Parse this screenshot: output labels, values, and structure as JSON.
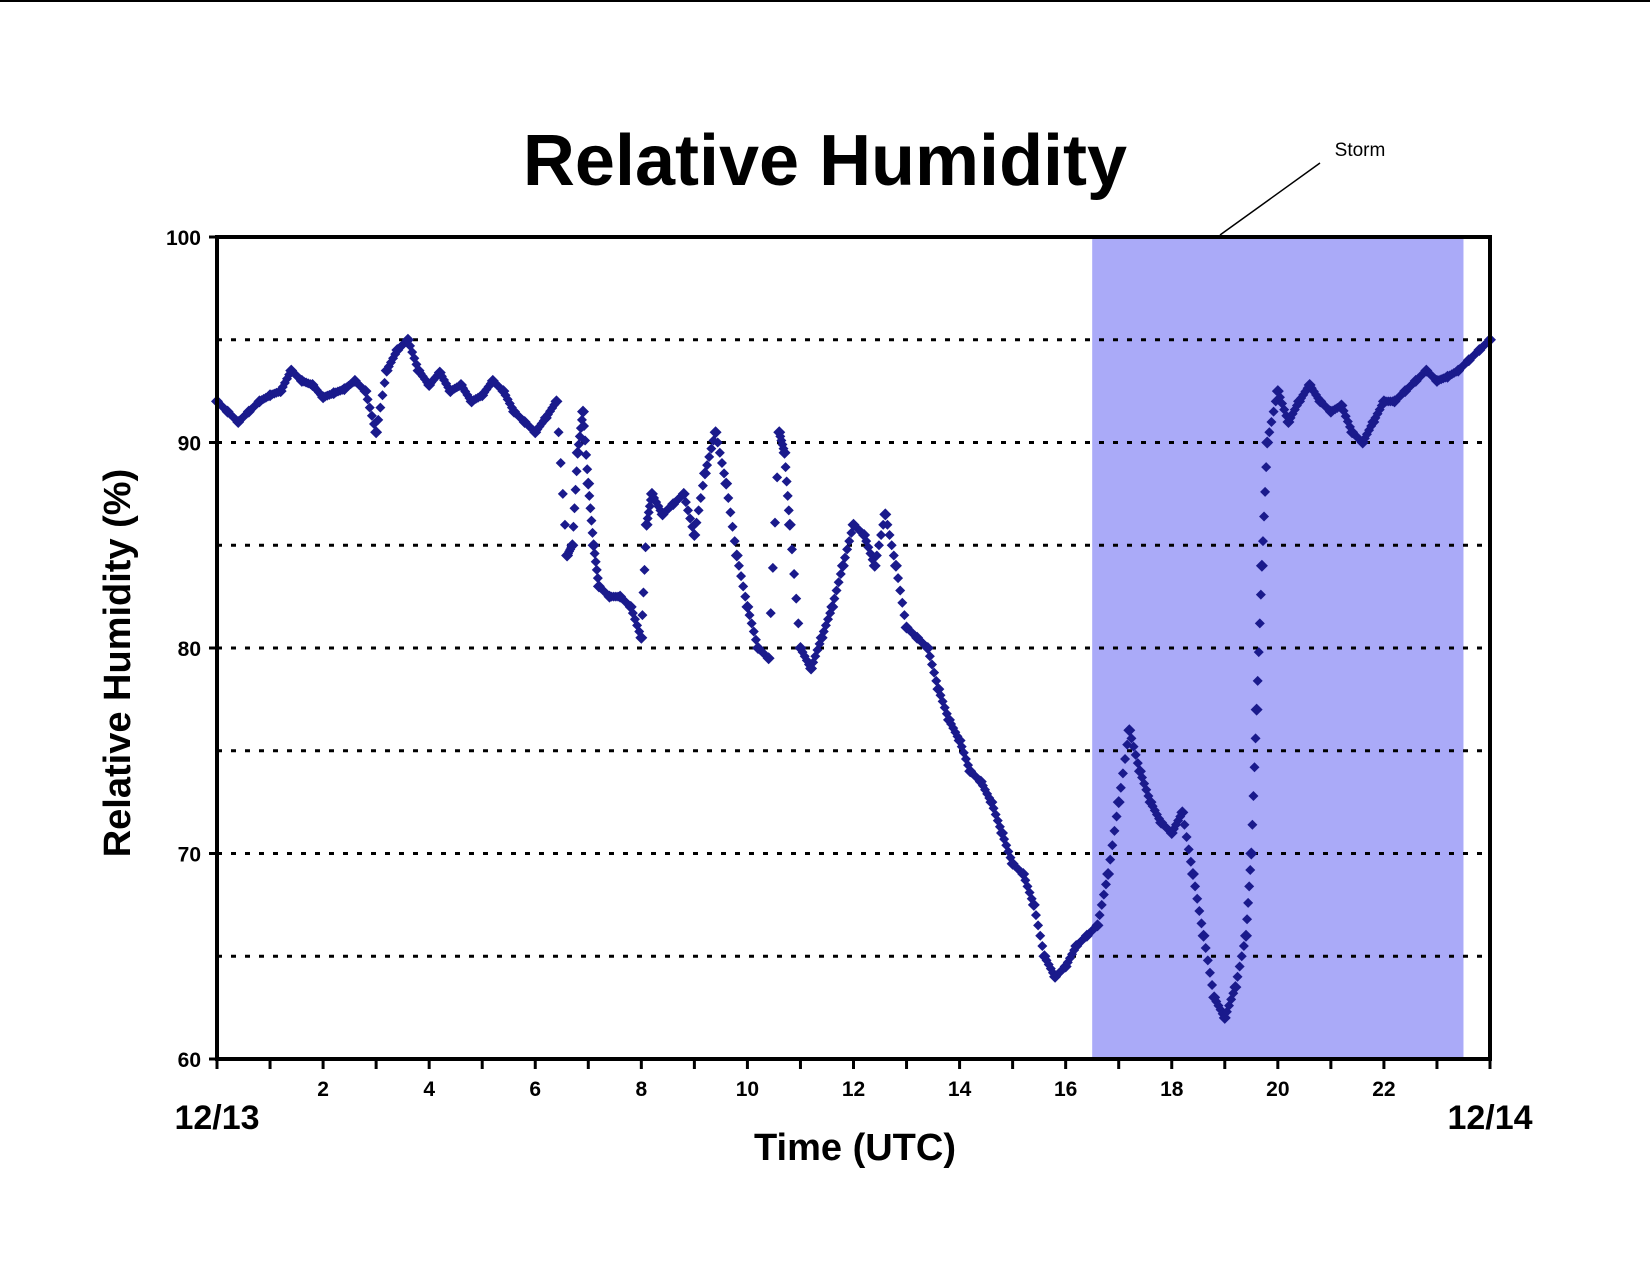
{
  "chart_data": {
    "type": "scatter",
    "title": "Relative Humidity",
    "xlabel": "Time (UTC)",
    "ylabel": "Relative Humidity (%)",
    "xlim": [
      0,
      24
    ],
    "ylim": [
      60,
      100
    ],
    "yticks": [
      60,
      70,
      80,
      90,
      100
    ],
    "y_gridlines": [
      65,
      70,
      75,
      80,
      85,
      90,
      95
    ],
    "x_tick_labels": [
      2,
      4,
      6,
      8,
      10,
      12,
      14,
      16,
      18,
      20,
      22
    ],
    "date_labels": [
      "12/13",
      "12/14"
    ],
    "marker_color": "#1a1a8c",
    "storm": {
      "label": "Storm",
      "x_start": 16.5,
      "x_end": 23.5,
      "color": "#aaaaf8"
    },
    "x": [
      0.0,
      0.2,
      0.4,
      0.6,
      0.8,
      1.0,
      1.2,
      1.4,
      1.6,
      1.8,
      2.0,
      2.2,
      2.4,
      2.6,
      2.8,
      3.0,
      3.2,
      3.4,
      3.6,
      3.8,
      4.0,
      4.2,
      4.4,
      4.6,
      4.8,
      5.0,
      5.2,
      5.4,
      5.6,
      5.8,
      6.0,
      6.2,
      6.4,
      6.6,
      6.7,
      6.8,
      6.9,
      7.0,
      7.1,
      7.2,
      7.4,
      7.6,
      7.8,
      8.0,
      8.1,
      8.2,
      8.4,
      8.6,
      8.8,
      9.0,
      9.2,
      9.4,
      9.6,
      9.8,
      10.0,
      10.2,
      10.4,
      10.6,
      10.7,
      10.8,
      11.0,
      11.2,
      11.4,
      11.6,
      11.8,
      12.0,
      12.2,
      12.4,
      12.6,
      12.8,
      13.0,
      13.2,
      13.4,
      13.6,
      13.8,
      14.0,
      14.2,
      14.4,
      14.6,
      14.8,
      15.0,
      15.2,
      15.4,
      15.6,
      15.8,
      16.0,
      16.2,
      16.4,
      16.6,
      16.8,
      17.0,
      17.2,
      17.4,
      17.6,
      17.8,
      18.0,
      18.2,
      18.4,
      18.6,
      18.8,
      19.0,
      19.2,
      19.4,
      19.5,
      19.6,
      19.7,
      19.8,
      20.0,
      20.2,
      20.4,
      20.6,
      20.8,
      21.0,
      21.2,
      21.4,
      21.6,
      21.8,
      22.0,
      22.2,
      22.4,
      22.6,
      22.8,
      23.0,
      23.2,
      23.4,
      23.6,
      23.8,
      24.0
    ],
    "y": [
      92,
      91.5,
      91,
      91.5,
      92,
      92.3,
      92.5,
      93.5,
      93,
      92.8,
      92.2,
      92.4,
      92.6,
      93,
      92.5,
      90.5,
      93.5,
      94.5,
      95,
      93.5,
      92.8,
      93.4,
      92.5,
      92.8,
      92,
      92.3,
      93,
      92.5,
      91.5,
      91,
      90.5,
      91.2,
      92,
      84.5,
      85,
      89.5,
      91.5,
      88,
      85,
      83,
      82.5,
      82.5,
      82,
      80.5,
      86,
      87.5,
      86.5,
      87,
      87.5,
      85.5,
      88.5,
      90.5,
      88,
      84.5,
      82,
      80,
      79.5,
      90.5,
      89.5,
      86,
      80,
      79,
      80.5,
      82,
      84,
      86,
      85.5,
      84,
      86.5,
      84,
      81,
      80.5,
      80,
      78,
      76.5,
      75.5,
      74,
      73.5,
      72.5,
      71,
      69.5,
      69,
      67.5,
      65,
      64,
      64.5,
      65.5,
      66,
      66.5,
      69,
      72.5,
      76,
      74,
      72.5,
      71.5,
      71,
      72,
      69,
      66,
      63,
      62,
      63.5,
      66,
      70,
      77,
      84,
      90,
      92.5,
      91,
      92,
      92.8,
      92,
      91.5,
      91.8,
      90.5,
      90,
      91,
      92,
      92,
      92.5,
      93,
      93.5,
      93,
      93.2,
      93.5,
      94,
      94.5,
      95
    ]
  }
}
